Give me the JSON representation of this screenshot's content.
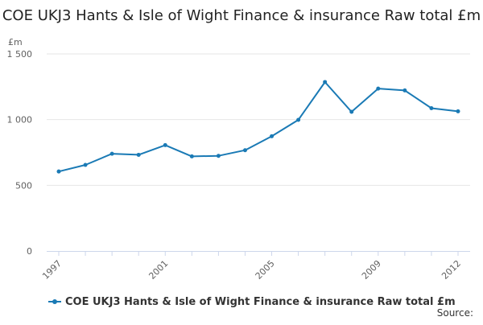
{
  "title": "COE UKJ3 Hants & Isle of Wight Finance & insurance Raw total £m",
  "source_label": "Source:",
  "colors": {
    "series": "#1a7ab5",
    "grid": "#e6e6e6",
    "axis": "#ccd6eb"
  },
  "chart_data": {
    "type": "line",
    "title": "COE UKJ3 Hants & Isle of Wight Finance & insurance Raw total £m",
    "ylabel": "£m",
    "xlabel": "",
    "ylim": [
      0,
      1500
    ],
    "xlim": [
      1997,
      2012
    ],
    "y_ticks": [
      0,
      500,
      1000,
      1500
    ],
    "y_tick_labels": [
      "0",
      "500",
      "1 000",
      "1 500"
    ],
    "x_ticks": [
      1997,
      2001,
      2005,
      2009,
      2012
    ],
    "x_tick_labels": [
      "1997",
      "2001",
      "2005",
      "2009",
      "2012"
    ],
    "grid": true,
    "legend_position": "bottom-left",
    "series": [
      {
        "name": "COE UKJ3 Hants & Isle of Wight Finance & insurance Raw total £m",
        "x": [
          1997,
          1998,
          1999,
          2000,
          2001,
          2002,
          2003,
          2004,
          2005,
          2006,
          2007,
          2008,
          2009,
          2010,
          2011,
          2012
        ],
        "values": [
          605,
          655,
          740,
          732,
          806,
          720,
          724,
          767,
          873,
          998,
          1286,
          1059,
          1236,
          1222,
          1087,
          1063
        ]
      }
    ]
  }
}
